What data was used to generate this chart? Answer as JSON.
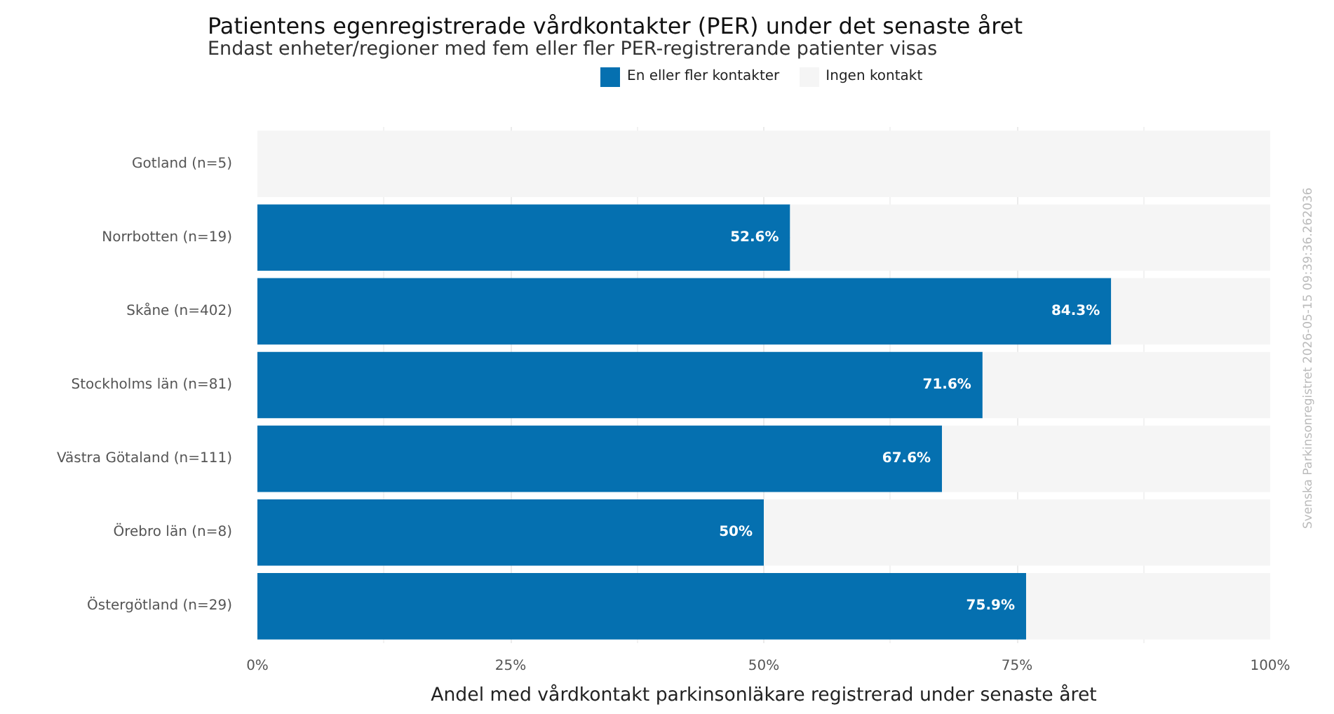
{
  "chart_data": {
    "type": "bar",
    "orientation": "horizontal",
    "stacked": true,
    "title": "Patientens egenregistrerade vårdkontakter (PER) under det senaste året",
    "subtitle": "Endast enheter/regioner med fem eller fler PER-registrerande patienter visas",
    "xlabel": "Andel med vårdkontakt parkinsonläkare registrerad under senaste året",
    "categories": [
      "Gotland (n=5)",
      "Norrbotten (n=19)",
      "Skåne (n=402)",
      "Stockholms län (n=81)",
      "Västra Götaland (n=111)",
      "Örebro län (n=8)",
      "Östergötland (n=29)"
    ],
    "series": [
      {
        "name": "En eller fler kontakter",
        "color": "#0570b0",
        "values": [
          0,
          52.6,
          84.3,
          71.6,
          67.6,
          50,
          75.9
        ],
        "value_labels": [
          null,
          "52.6%",
          "84.3%",
          "71.6%",
          "67.6%",
          "50%",
          "75.9%"
        ]
      },
      {
        "name": "Ingen kontakt",
        "color": "#f5f5f5",
        "values": [
          100,
          47.4,
          15.7,
          28.4,
          32.4,
          50,
          24.1
        ]
      }
    ],
    "xlim": [
      0,
      100
    ],
    "xticks": [
      {
        "value": 0,
        "label": "0%"
      },
      {
        "value": 25,
        "label": "25%"
      },
      {
        "value": 50,
        "label": "50%"
      },
      {
        "value": 75,
        "label": "75%"
      },
      {
        "value": 100,
        "label": "100%"
      }
    ],
    "grid": true,
    "legend": "top",
    "annotations": [
      "Svenska Parkinsonregistret 2026-05-15 09:39:36.262036"
    ]
  }
}
